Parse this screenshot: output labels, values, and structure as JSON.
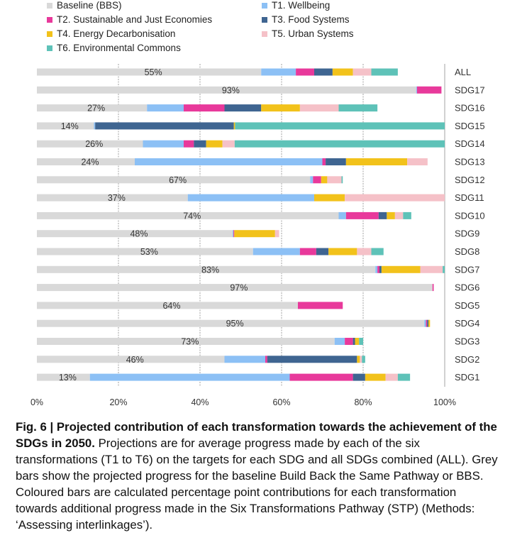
{
  "legend": [
    {
      "key": "baseline",
      "label": "Baseline (BBS)",
      "color": "#d9d9d9"
    },
    {
      "key": "t1",
      "label": "T1. Wellbeing",
      "color": "#8cc0f5"
    },
    {
      "key": "t2",
      "label": "T2. Sustainable and Just Economies",
      "color": "#e8399b"
    },
    {
      "key": "t3",
      "label": "T3. Food Systems",
      "color": "#3f6591"
    },
    {
      "key": "t4",
      "label": "T4. Energy Decarbonisation",
      "color": "#f2c21b"
    },
    {
      "key": "t5",
      "label": "T5. Urban Systems",
      "color": "#f5c1c8"
    },
    {
      "key": "t6",
      "label": "T6. Environmental Commons",
      "color": "#5ec2b8"
    }
  ],
  "chart_data": {
    "type": "bar",
    "orientation": "horizontal",
    "stacked": true,
    "xlim": [
      0,
      100
    ],
    "x_ticks": [
      "0%",
      "20%",
      "40%",
      "60%",
      "80%",
      "100%"
    ],
    "grid": "vertical dashed at 20% intervals",
    "legend_position": "top",
    "categories": [
      "ALL",
      "SDG17",
      "SDG16",
      "SDG15",
      "SDG14",
      "SDG13",
      "SDG12",
      "SDG11",
      "SDG10",
      "SDG9",
      "SDG8",
      "SDG7",
      "SDG6",
      "SDG5",
      "SDG4",
      "SDG3",
      "SDG2",
      "SDG1"
    ],
    "baseline_labels": [
      "55%",
      "93%",
      "27%",
      "14%",
      "26%",
      "24%",
      "67%",
      "37%",
      "74%",
      "48%",
      "53%",
      "83%",
      "97%",
      "64%",
      "95%",
      "73%",
      "46%",
      "13%"
    ],
    "series": [
      {
        "name": "Baseline (BBS)",
        "values": [
          55,
          93,
          27,
          14,
          26,
          24,
          67,
          37,
          74,
          48,
          53,
          83,
          97,
          64,
          95,
          73,
          46,
          13
        ]
      },
      {
        "name": "T1. Wellbeing",
        "values": [
          8.5,
          0.2,
          9,
          0.3,
          10,
          46,
          0.7,
          31,
          1.8,
          0.2,
          11.5,
          0.5,
          0,
          0,
          0.4,
          2.5,
          10,
          49
        ]
      },
      {
        "name": "T2. Sustainable and Just Economies",
        "values": [
          4.5,
          6,
          10,
          0,
          2.5,
          0.8,
          2,
          0,
          8,
          0.2,
          4,
          0.5,
          0.3,
          11,
          0.3,
          2,
          0.5,
          15.5
        ]
      },
      {
        "name": "T3. Food Systems",
        "values": [
          4.5,
          0,
          9,
          34,
          3,
          5,
          0,
          0,
          2,
          0,
          3,
          0.5,
          0,
          0,
          0.3,
          0.5,
          22,
          3
        ]
      },
      {
        "name": "T4. Energy Decarbonisation",
        "values": [
          5,
          0,
          9.5,
          0.3,
          4,
          15,
          1.5,
          7.5,
          2,
          10,
          7,
          9.5,
          0,
          0,
          0.4,
          1,
          0.7,
          5
        ]
      },
      {
        "name": "T5. Urban Systems",
        "values": [
          4.5,
          0,
          9.5,
          0,
          3,
          5,
          3.5,
          25,
          2,
          1,
          3.5,
          5.5,
          0,
          0,
          0,
          0,
          0.5,
          3
        ]
      },
      {
        "name": "T6. Environmental Commons",
        "values": [
          6.5,
          0,
          9.5,
          51.7,
          51.5,
          0,
          0.3,
          0,
          2,
          0,
          3,
          0.5,
          0,
          0,
          0,
          1,
          0.8,
          3
        ]
      }
    ]
  },
  "caption": {
    "title": "Fig. 6 | Projected contribution of each transformation towards the achievement of the SDGs in 2050.",
    "text": " Projections are for average progress made by each of the six transformations (T1 to T6) on the targets for each SDG and all SDGs combined (ALL). Grey bars show the projected progress for the baseline Build Back the Same Pathway or BBS. Coloured bars are calculated percentage point contributions for each transformation towards additional progress made in the Six Transformations Pathway (STP) (Methods: ‘Assessing interlinkages’)."
  }
}
